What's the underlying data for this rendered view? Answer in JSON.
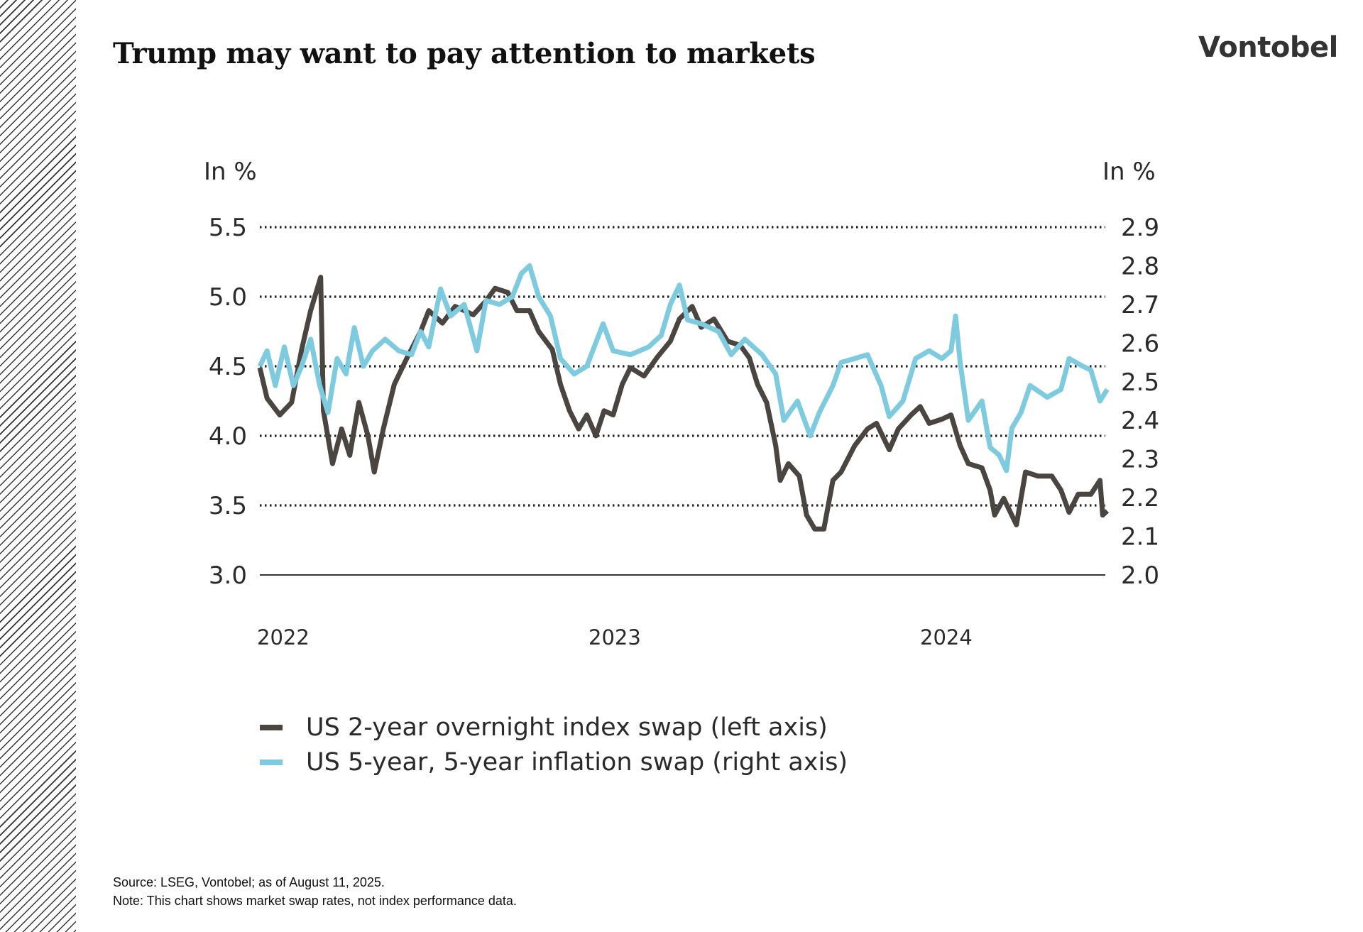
{
  "header": {
    "title": "Trump may want to pay attention to markets",
    "logo": "Vontobel"
  },
  "footer": {
    "source": "Source: LSEG, Vontobel; as of August 11, 2025.",
    "note": "Note: This chart shows market swap rates, not index performance data."
  },
  "chart_data": {
    "type": "line",
    "title": "",
    "left_axis": {
      "label": "In %",
      "ticks": [
        "5.5",
        "5.0",
        "4.5",
        "4.0",
        "3.5",
        "3.0"
      ],
      "range": [
        3.0,
        5.5
      ]
    },
    "right_axis": {
      "label": "In %",
      "ticks": [
        "2.9",
        "2.8",
        "2.7",
        "2.6",
        "2.5",
        "2.4",
        "2.3",
        "2.2",
        "2.1",
        "2.0"
      ],
      "range": [
        2.0,
        2.9
      ]
    },
    "x_axis": {
      "ticks": [
        "2022",
        "2023",
        "2024"
      ],
      "range": [
        "2022-01-01",
        "2024-07-23"
      ]
    },
    "grid": "horizontal dotted at left-axis ticks",
    "legend_position": "bottom-left",
    "series": [
      {
        "name": "US 2-year overnight index swap (left axis)",
        "axis": "left",
        "color": "#4a4541",
        "x": [
          "2022-01-01",
          "2022-01-09",
          "2022-01-23",
          "2022-02-05",
          "2022-02-16",
          "2022-02-26",
          "2022-03-09",
          "2022-03-12",
          "2022-03-22",
          "2022-04-01",
          "2022-04-10",
          "2022-04-20",
          "2022-04-30",
          "2022-05-07",
          "2022-05-17",
          "2022-05-29",
          "2022-06-12",
          "2022-06-27",
          "2022-07-06",
          "2022-07-21",
          "2022-08-04",
          "2022-08-24",
          "2022-09-07",
          "2022-09-17",
          "2022-10-01",
          "2022-10-11",
          "2022-10-25",
          "2022-11-04",
          "2022-11-19",
          "2022-11-28",
          "2022-12-08",
          "2022-12-18",
          "2022-12-27",
          "2023-01-06",
          "2023-01-15",
          "2023-01-25",
          "2023-02-04",
          "2023-02-13",
          "2023-02-28",
          "2023-03-14",
          "2023-03-29",
          "2023-04-08",
          "2023-04-22",
          "2023-05-02",
          "2023-05-16",
          "2023-05-31",
          "2023-06-14",
          "2023-06-24",
          "2023-07-03",
          "2023-07-13",
          "2023-07-23",
          "2023-07-28",
          "2023-08-06",
          "2023-08-18",
          "2023-08-26",
          "2023-09-04",
          "2023-09-14",
          "2023-09-24",
          "2023-10-03",
          "2023-10-18",
          "2023-11-01",
          "2023-11-11",
          "2023-11-25",
          "2023-12-05",
          "2023-12-19",
          "2023-12-29",
          "2024-01-08",
          "2024-01-22",
          "2024-02-01",
          "2024-02-11",
          "2024-02-20",
          "2024-03-06",
          "2024-03-15",
          "2024-03-20",
          "2024-03-30",
          "2024-04-13",
          "2024-04-23",
          "2024-05-07",
          "2024-05-22",
          "2024-06-01",
          "2024-06-10",
          "2024-06-20",
          "2024-07-04",
          "2024-07-14",
          "2024-07-17",
          "2024-07-22"
        ],
        "y": [
          4.49,
          4.27,
          4.15,
          4.24,
          4.62,
          4.9,
          5.14,
          4.18,
          3.8,
          4.05,
          3.86,
          4.24,
          4.0,
          3.74,
          4.05,
          4.37,
          4.56,
          4.75,
          4.9,
          4.81,
          4.93,
          4.87,
          4.97,
          5.06,
          5.03,
          4.9,
          4.9,
          4.75,
          4.62,
          4.37,
          4.18,
          4.05,
          4.15,
          4.0,
          4.18,
          4.15,
          4.37,
          4.49,
          4.43,
          4.56,
          4.68,
          4.84,
          4.93,
          4.78,
          4.84,
          4.68,
          4.65,
          4.56,
          4.37,
          4.24,
          3.93,
          3.68,
          3.8,
          3.71,
          3.43,
          3.33,
          3.33,
          3.68,
          3.74,
          3.93,
          4.05,
          4.09,
          3.9,
          4.05,
          4.15,
          4.21,
          4.09,
          4.12,
          4.15,
          3.93,
          3.8,
          3.77,
          3.61,
          3.43,
          3.55,
          3.36,
          3.74,
          3.71,
          3.71,
          3.61,
          3.45,
          3.58,
          3.58,
          3.68,
          3.43,
          3.46
        ]
      },
      {
        "name": "US 5-year, 5-year inflation swap (right axis)",
        "axis": "right",
        "color": "#7ecbe0",
        "x": [
          "2022-01-01",
          "2022-01-09",
          "2022-01-18",
          "2022-01-28",
          "2022-02-07",
          "2022-02-16",
          "2022-02-26",
          "2022-03-08",
          "2022-03-17",
          "2022-03-27",
          "2022-04-06",
          "2022-04-15",
          "2022-04-25",
          "2022-05-05",
          "2022-05-19",
          "2022-06-03",
          "2022-06-17",
          "2022-06-27",
          "2022-07-06",
          "2022-07-19",
          "2022-07-30",
          "2022-08-14",
          "2022-08-28",
          "2022-09-07",
          "2022-09-22",
          "2022-10-06",
          "2022-10-16",
          "2022-10-25",
          "2022-11-04",
          "2022-11-17",
          "2022-11-28",
          "2022-12-13",
          "2022-12-27",
          "2023-01-14",
          "2023-01-25",
          "2023-02-13",
          "2023-03-05",
          "2023-03-19",
          "2023-03-29",
          "2023-04-08",
          "2023-04-17",
          "2023-05-02",
          "2023-05-21",
          "2023-06-04",
          "2023-06-19",
          "2023-07-08",
          "2023-07-23",
          "2023-08-01",
          "2023-08-16",
          "2023-08-30",
          "2023-09-09",
          "2023-09-24",
          "2023-10-03",
          "2023-10-18",
          "2023-11-01",
          "2023-11-16",
          "2023-11-25",
          "2023-12-10",
          "2023-12-24",
          "2024-01-08",
          "2024-01-22",
          "2024-02-01",
          "2024-02-06",
          "2024-02-11",
          "2024-02-20",
          "2024-03-06",
          "2024-03-15",
          "2024-03-25",
          "2024-04-02",
          "2024-04-08",
          "2024-04-18",
          "2024-04-28",
          "2024-05-17",
          "2024-06-01",
          "2024-06-10",
          "2024-06-25",
          "2024-07-04",
          "2024-07-14",
          "2024-07-22"
        ],
        "y": [
          2.54,
          2.58,
          2.49,
          2.59,
          2.49,
          2.54,
          2.61,
          2.49,
          2.42,
          2.56,
          2.52,
          2.64,
          2.54,
          2.58,
          2.61,
          2.58,
          2.57,
          2.63,
          2.59,
          2.74,
          2.67,
          2.7,
          2.58,
          2.71,
          2.7,
          2.72,
          2.78,
          2.8,
          2.72,
          2.67,
          2.56,
          2.52,
          2.54,
          2.65,
          2.58,
          2.57,
          2.59,
          2.62,
          2.7,
          2.75,
          2.66,
          2.65,
          2.63,
          2.57,
          2.61,
          2.57,
          2.52,
          2.4,
          2.45,
          2.36,
          2.42,
          2.49,
          2.55,
          2.56,
          2.57,
          2.49,
          2.41,
          2.45,
          2.56,
          2.58,
          2.56,
          2.58,
          2.67,
          2.55,
          2.4,
          2.45,
          2.33,
          2.31,
          2.27,
          2.38,
          2.42,
          2.49,
          2.46,
          2.48,
          2.56,
          2.54,
          2.53,
          2.45,
          2.48
        ]
      }
    ]
  }
}
